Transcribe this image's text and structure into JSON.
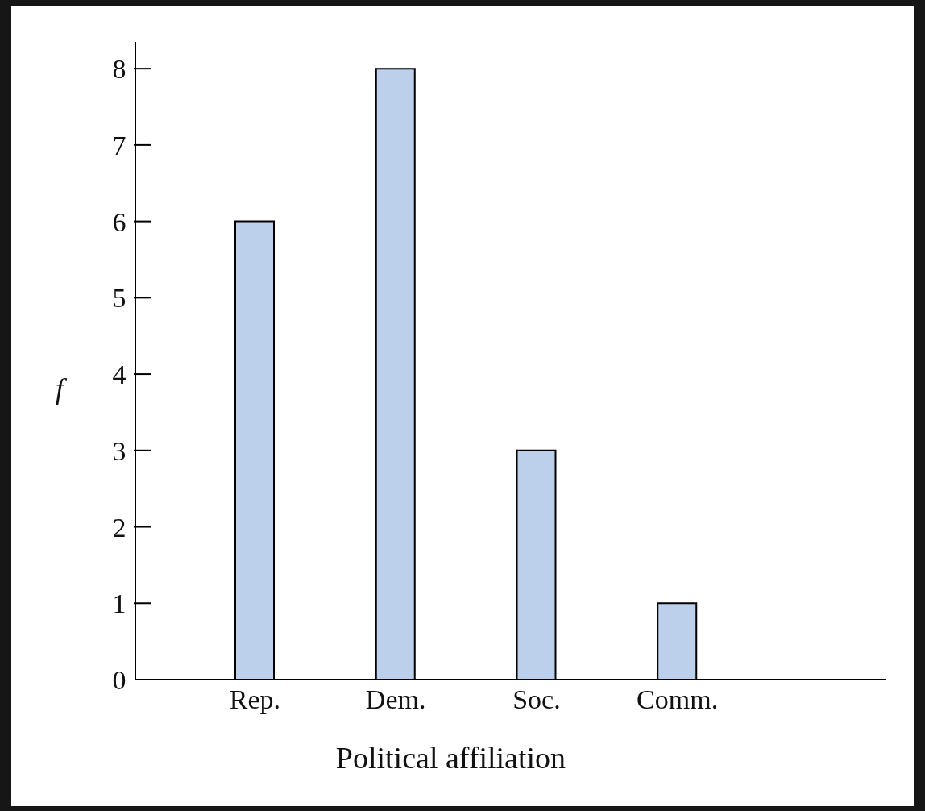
{
  "chart_data": {
    "type": "bar",
    "xlabel": "Political affiliation",
    "ylabel": "f",
    "categories": [
      "Rep.",
      "Dem.",
      "Soc.",
      "Comm."
    ],
    "values": [
      6,
      8,
      3,
      1
    ],
    "color": "#bcd0ec",
    "ylim": [
      0,
      8.35
    ],
    "yticks": [
      0,
      1,
      2,
      3,
      4,
      5,
      6,
      7,
      8
    ]
  }
}
